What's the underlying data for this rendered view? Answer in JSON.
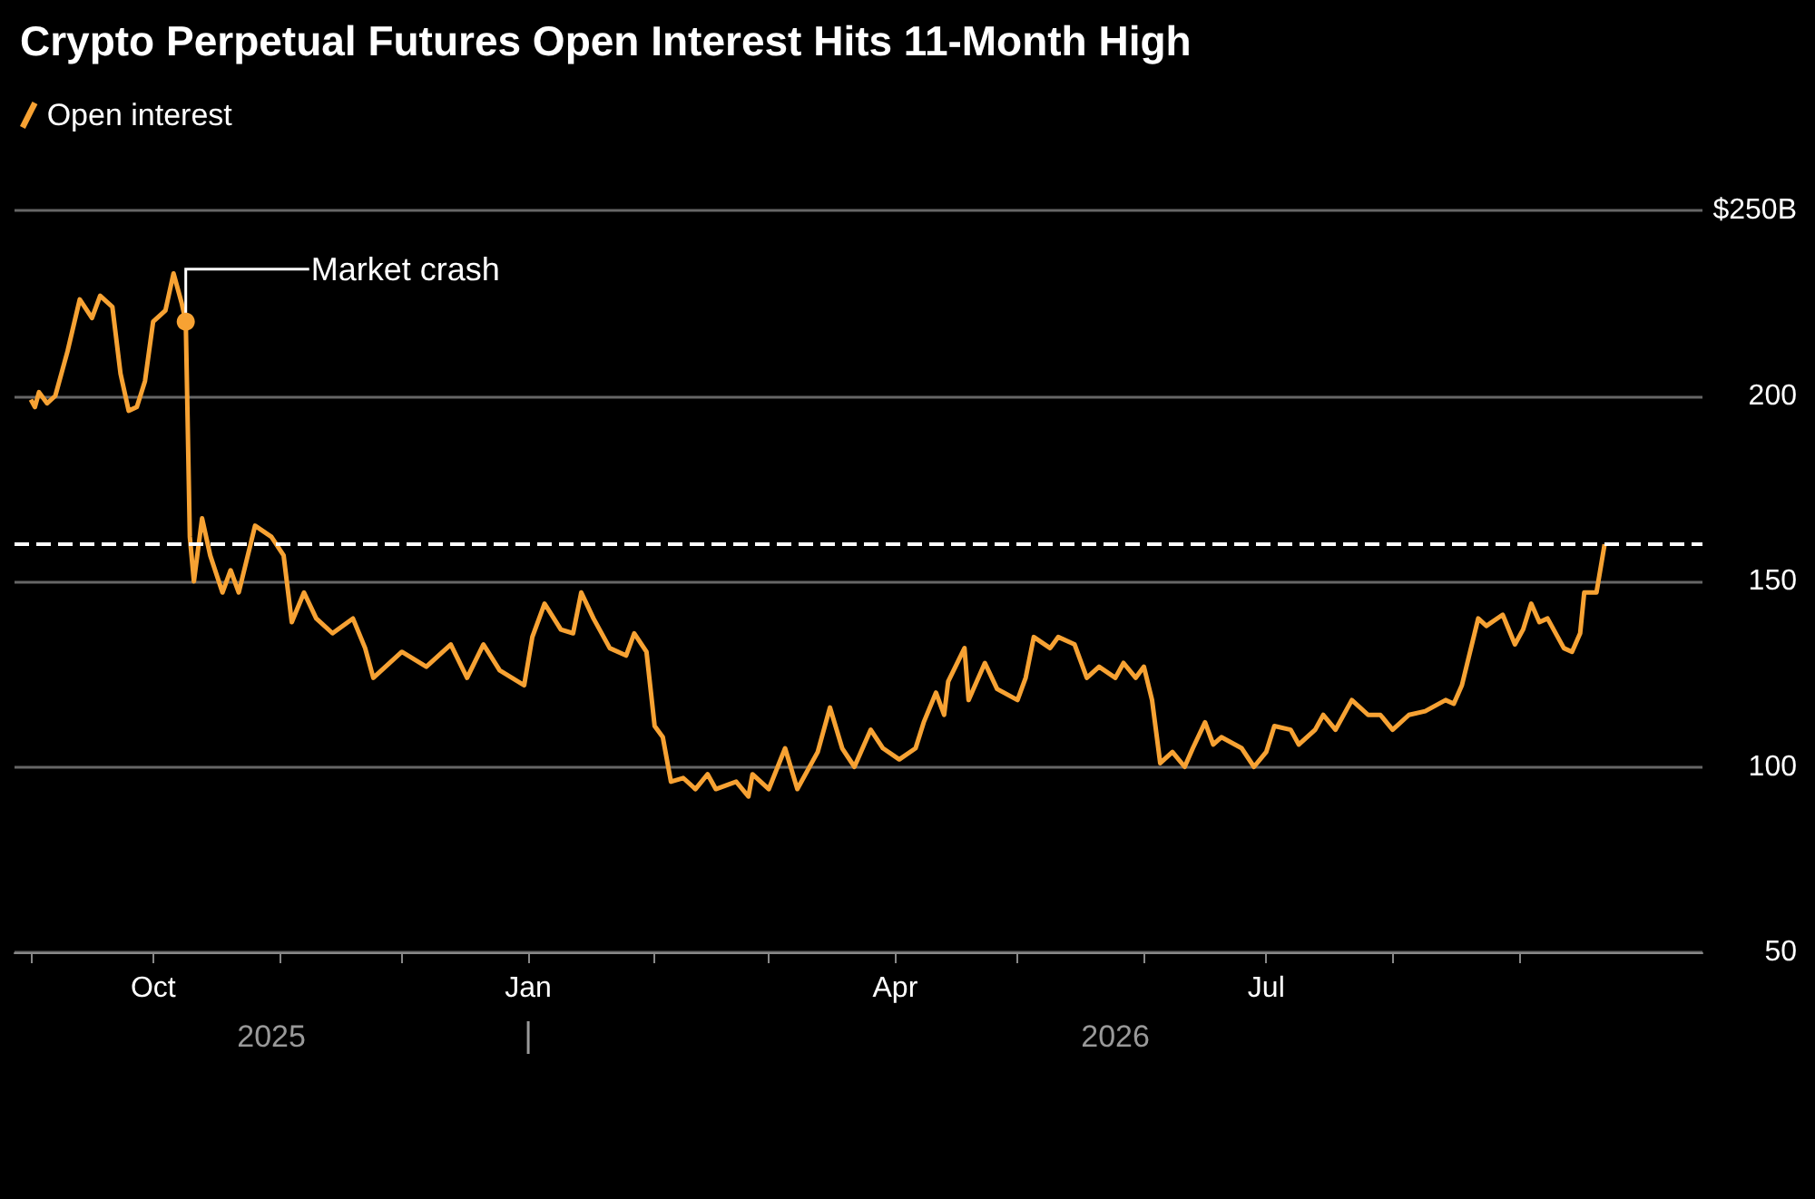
{
  "chart_data": {
    "type": "line",
    "title": "Crypto Perpetual Futures Open Interest Hits 11-Month High",
    "x": [
      "2025-09-01",
      "2025-09-02",
      "2025-09-03",
      "2025-09-05",
      "2025-09-07",
      "2025-09-10",
      "2025-09-13",
      "2025-09-16",
      "2025-09-18",
      "2025-09-21",
      "2025-09-23",
      "2025-09-25",
      "2025-09-27",
      "2025-09-29",
      "2025-10-01",
      "2025-10-04",
      "2025-10-06",
      "2025-10-08",
      "2025-10-09",
      "2025-10-10",
      "2025-10-11",
      "2025-10-13",
      "2025-10-15",
      "2025-10-18",
      "2025-10-20",
      "2025-10-22",
      "2025-10-26",
      "2025-10-30",
      "2025-11-02",
      "2025-11-04",
      "2025-11-07",
      "2025-11-10",
      "2025-11-14",
      "2025-11-19",
      "2025-11-22",
      "2025-11-24",
      "2025-12-01",
      "2025-12-07",
      "2025-12-13",
      "2025-12-17",
      "2025-12-21",
      "2025-12-25",
      "2025-12-31",
      "2026-01-02",
      "2026-01-05",
      "2026-01-09",
      "2026-01-12",
      "2026-01-14",
      "2026-01-17",
      "2026-01-21",
      "2026-01-25",
      "2026-01-27",
      "2026-01-30",
      "2026-02-01",
      "2026-02-03",
      "2026-02-05",
      "2026-02-08",
      "2026-02-11",
      "2026-02-14",
      "2026-02-16",
      "2026-02-21",
      "2026-02-24",
      "2026-02-25",
      "2026-03-01",
      "2026-03-05",
      "2026-03-08",
      "2026-03-13",
      "2026-03-16",
      "2026-03-19",
      "2026-03-22",
      "2026-03-26",
      "2026-03-29",
      "2026-04-02",
      "2026-04-06",
      "2026-04-08",
      "2026-04-11",
      "2026-04-13",
      "2026-04-14",
      "2026-04-18",
      "2026-04-19",
      "2026-04-23",
      "2026-04-26",
      "2026-05-01",
      "2026-05-03",
      "2026-05-05",
      "2026-05-09",
      "2026-05-11",
      "2026-05-15",
      "2026-05-18",
      "2026-05-21",
      "2026-05-25",
      "2026-05-27",
      "2026-05-30",
      "2026-06-01",
      "2026-06-03",
      "2026-06-05",
      "2026-06-08",
      "2026-06-11",
      "2026-06-13",
      "2026-06-16",
      "2026-06-18",
      "2026-06-20",
      "2026-06-25",
      "2026-06-28",
      "2026-07-01",
      "2026-07-03",
      "2026-07-07",
      "2026-07-09",
      "2026-07-13",
      "2026-07-15",
      "2026-07-18",
      "2026-07-22",
      "2026-07-26",
      "2026-07-29",
      "2026-08-01",
      "2026-08-05",
      "2026-08-09",
      "2026-08-14",
      "2026-08-16",
      "2026-08-18",
      "2026-08-22",
      "2026-08-24",
      "2026-08-28",
      "2026-08-31",
      "2026-09-02",
      "2026-09-04",
      "2026-09-06",
      "2026-09-08",
      "2026-09-12",
      "2026-09-14",
      "2026-09-16",
      "2026-09-17",
      "2026-09-20",
      "2026-09-22"
    ],
    "series": [
      {
        "name": "Open interest",
        "color": "#f7a233",
        "values": [
          199,
          197,
          201,
          198,
          200,
          212,
          226,
          221,
          227,
          224,
          206,
          196,
          197,
          204,
          220,
          223,
          233,
          225,
          220,
          162,
          150,
          167,
          157,
          147,
          153,
          147,
          165,
          162,
          157,
          139,
          147,
          140,
          136,
          140,
          132,
          124,
          131,
          127,
          133,
          124,
          133,
          126,
          122,
          135,
          144,
          137,
          136,
          147,
          140,
          132,
          130,
          136,
          131,
          111,
          108,
          96,
          97,
          94,
          98,
          94,
          96,
          92,
          98,
          94,
          105,
          94,
          104,
          116,
          105,
          100,
          110,
          105,
          102,
          105,
          112,
          120,
          114,
          123,
          132,
          118,
          128,
          121,
          118,
          124,
          135,
          132,
          135,
          133,
          124,
          127,
          124,
          128,
          124,
          127,
          118,
          101,
          104,
          100,
          105,
          112,
          106,
          108,
          105,
          100,
          104,
          111,
          110,
          106,
          110,
          114,
          110,
          118,
          114,
          114,
          110,
          114,
          115,
          118,
          117,
          122,
          140,
          138,
          141,
          133,
          137,
          144,
          139,
          140,
          132,
          131,
          136,
          147,
          147,
          160
        ]
      }
    ],
    "xlim": [
      "2025-08-28",
      "2026-10-16"
    ],
    "xticks": [
      {
        "value": "2025-09-01",
        "label": null
      },
      {
        "value": "2025-10-01",
        "label": "Oct"
      },
      {
        "value": "2025-11-01",
        "label": null
      },
      {
        "value": "2025-12-01",
        "label": null
      },
      {
        "value": "2026-01-01",
        "label": "Jan"
      },
      {
        "value": "2026-02-01",
        "label": null
      },
      {
        "value": "2026-03-01",
        "label": null
      },
      {
        "value": "2026-04-01",
        "label": "Apr"
      },
      {
        "value": "2026-05-01",
        "label": null
      },
      {
        "value": "2026-06-01",
        "label": null
      },
      {
        "value": "2026-07-01",
        "label": "Jul"
      },
      {
        "value": "2026-08-01",
        "label": null
      },
      {
        "value": "2026-09-01",
        "label": null
      }
    ],
    "ylim": [
      50,
      250
    ],
    "yticks": [
      50,
      100,
      150,
      200,
      {
        "value": 250,
        "label": "$250B"
      }
    ],
    "grid": "y",
    "legend": "top left",
    "ref_lines": [
      {
        "axis": "y",
        "value": 160,
        "color": "#ffffff",
        "line_style": "dashed"
      }
    ],
    "annotations": [
      {
        "text": "Market crash",
        "x": "2025-10-09",
        "y": 220
      },
      "2025",
      "2026"
    ]
  }
}
